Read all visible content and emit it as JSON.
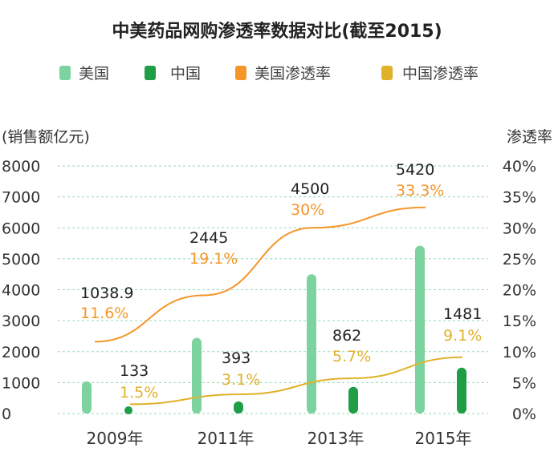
{
  "chart_data": {
    "type": "bar",
    "title": "中美药品网购渗透率数据对比(截至2015)",
    "categories": [
      "2009年",
      "2011年",
      "2013年",
      "2015年"
    ],
    "ylabel_left": "(销售额亿元)",
    "ylabel_right": "渗透率",
    "ylim_left": [
      0,
      8000
    ],
    "ylim_right": [
      0,
      40
    ],
    "yticks_left": [
      "0",
      "1000",
      "2000",
      "3000",
      "4000",
      "5000",
      "6000",
      "7000",
      "8000"
    ],
    "yticks_right": [
      "0%",
      "5%",
      "10%",
      "15%",
      "20%",
      "25%",
      "30%",
      "35%",
      "40%"
    ],
    "grid": true,
    "legend_position": "top",
    "bar_series": [
      {
        "name": "美国",
        "color": "#7dd3a0",
        "values": [
          1038.9,
          2445,
          4500,
          5420
        ]
      },
      {
        "name": "中国",
        "color": "#1f9d47",
        "values": [
          133,
          393,
          862,
          1481
        ]
      }
    ],
    "line_series": [
      {
        "name": "美国渗透率",
        "color": "#f5962a",
        "values": [
          11.6,
          19.1,
          30,
          33.3
        ]
      },
      {
        "name": "中国渗透率",
        "color": "#e0b22a",
        "values": [
          1.5,
          3.1,
          5.7,
          9.1
        ]
      }
    ],
    "annotations": [
      {
        "category": "2009年",
        "series": "美国",
        "value_label": "1038.9",
        "rate_label": "11.6%"
      },
      {
        "category": "2009年",
        "series": "中国",
        "value_label": "133",
        "rate_label": "1.5%"
      },
      {
        "category": "2011年",
        "series": "美国",
        "value_label": "2445",
        "rate_label": "19.1%"
      },
      {
        "category": "2011年",
        "series": "中国",
        "value_label": "393",
        "rate_label": "3.1%"
      },
      {
        "category": "2013年",
        "series": "美国",
        "value_label": "4500",
        "rate_label": "30%"
      },
      {
        "category": "2013年",
        "series": "中国",
        "value_label": "862",
        "rate_label": "5.7%"
      },
      {
        "category": "2015年",
        "series": "美国",
        "value_label": "5420",
        "rate_label": "33.3%"
      },
      {
        "category": "2015年",
        "series": "中国",
        "value_label": "1481",
        "rate_label": "9.1%"
      }
    ],
    "colors": {
      "grid": "#8fdcb3",
      "axis_text": "#333333",
      "value_text": "#222222"
    }
  }
}
